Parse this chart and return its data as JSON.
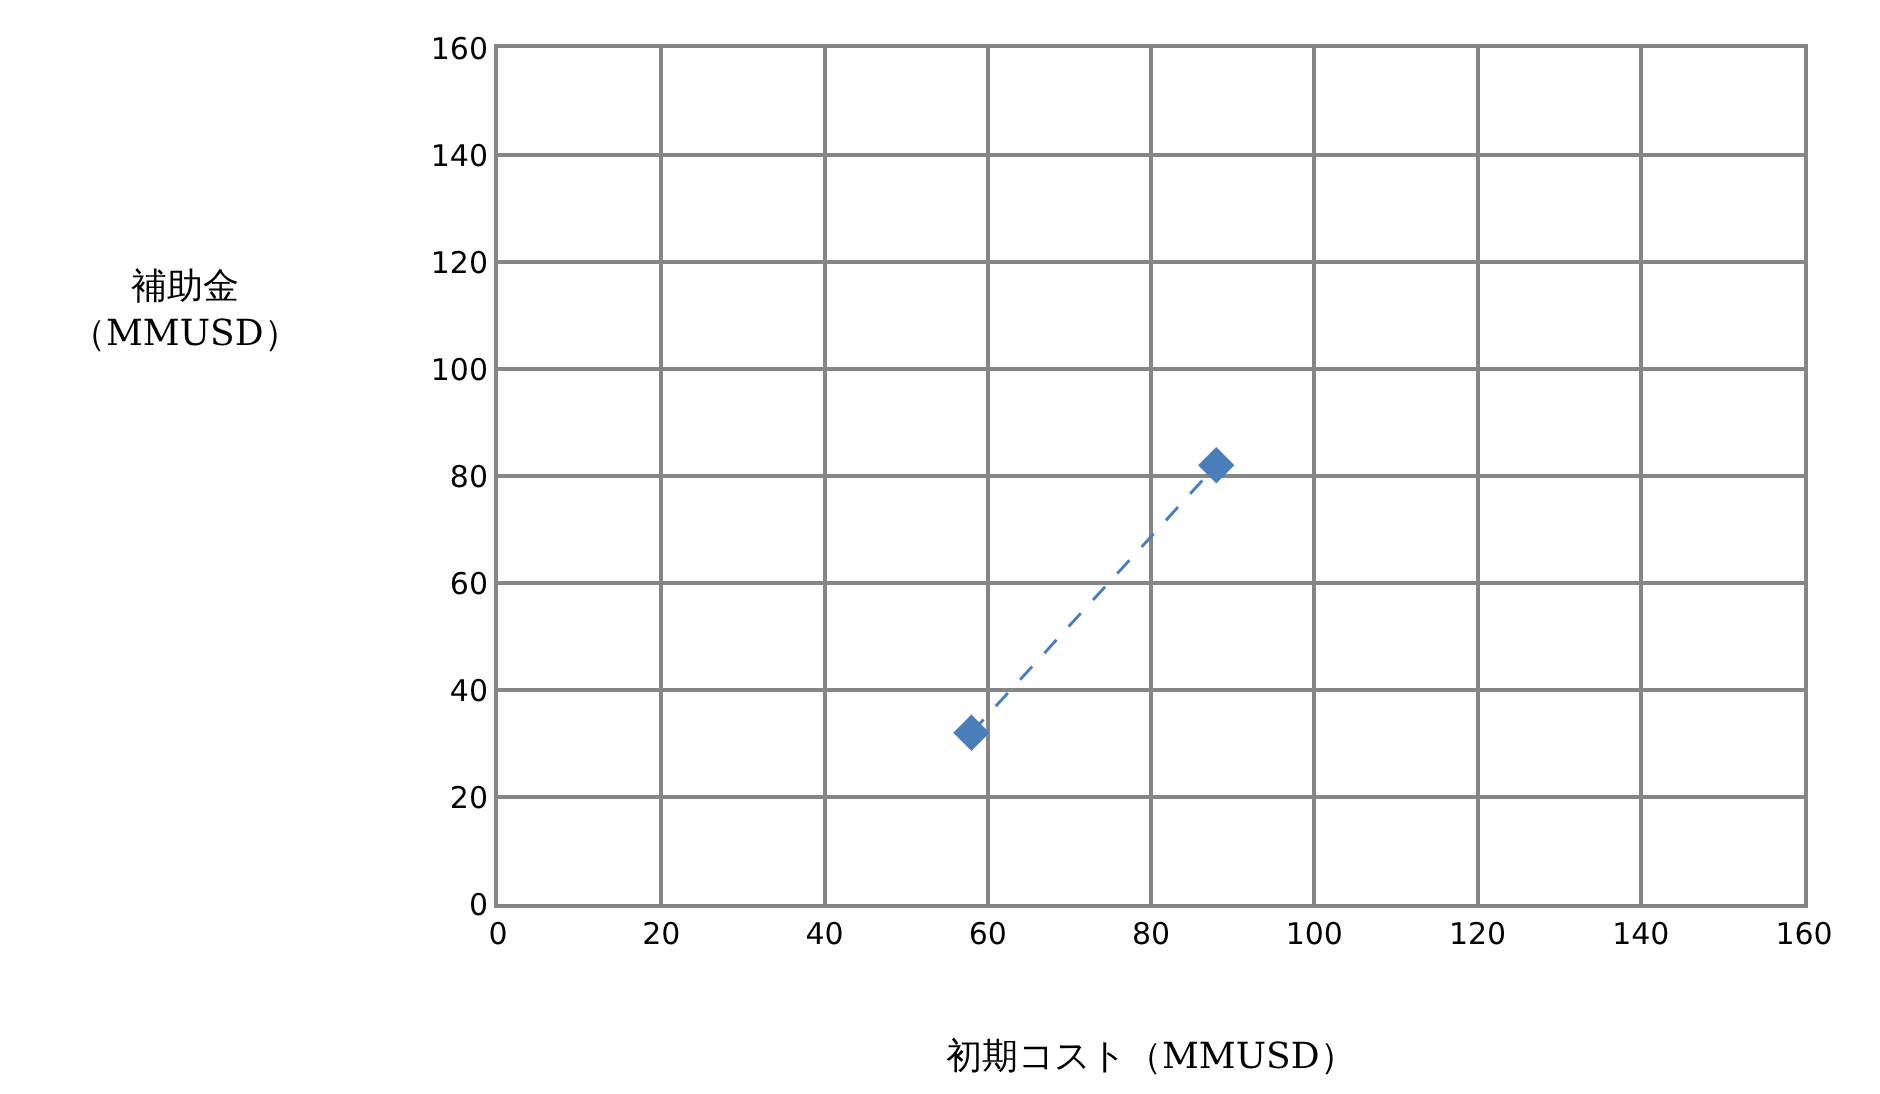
{
  "chart_data": {
    "type": "line",
    "xlabel": "初期コスト（MMUSD）",
    "ylabel": "補助金（MMUSD）",
    "x": [
      58,
      88
    ],
    "values": [
      32,
      82
    ],
    "color": "#4a7ebb",
    "marker": "diamond",
    "line_style": "dashed",
    "xlim": [
      0,
      160
    ],
    "xticks": [
      0,
      20,
      40,
      60,
      80,
      100,
      120,
      140,
      160
    ],
    "ylim": [
      0,
      160
    ],
    "yticks": [
      0,
      20,
      40,
      60,
      80,
      100,
      120,
      140,
      160
    ],
    "grid": true,
    "legend": false
  }
}
